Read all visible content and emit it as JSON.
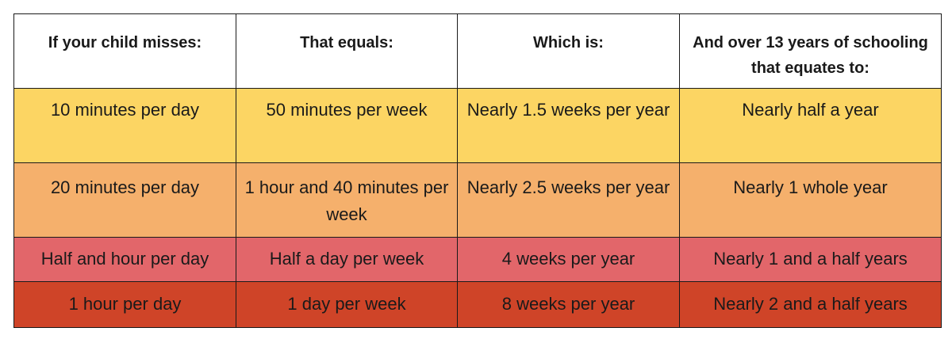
{
  "colors": {
    "row_1": "#fcd563",
    "row_2": "#f5b06c",
    "row_3": "#e2666a",
    "row_4": "#cf4428",
    "border": "#1a1a1a"
  },
  "table": {
    "headers": [
      "If your child misses:",
      "That equals:",
      "Which is:",
      "And over 13 years of schooling that equates to:"
    ],
    "rows": [
      [
        "10 minutes per day",
        "50 minutes per week",
        "Nearly 1.5 weeks per year",
        "Nearly half a year"
      ],
      [
        "20 minutes per day",
        "1 hour and 40 minutes per week",
        "Nearly 2.5 weeks per year",
        "Nearly 1 whole year"
      ],
      [
        "Half and hour per day",
        "Half a day per week",
        "4 weeks per year",
        "Nearly 1 and a half years"
      ],
      [
        "1 hour per day",
        "1 day per week",
        "8 weeks per year",
        "Nearly 2 and a half years"
      ]
    ]
  }
}
